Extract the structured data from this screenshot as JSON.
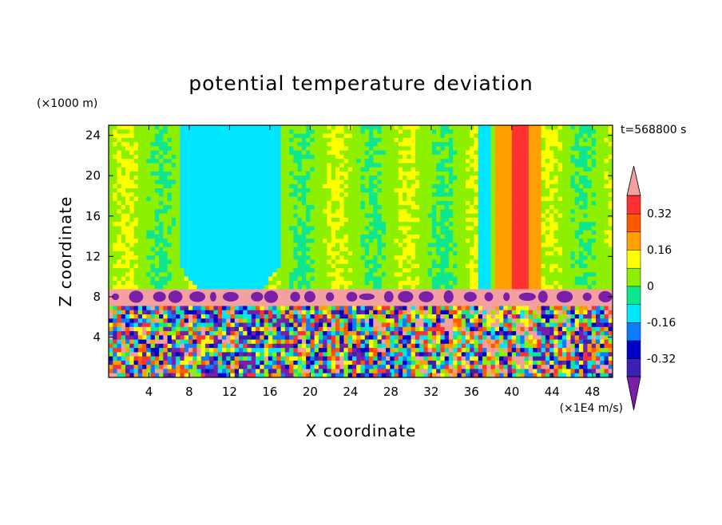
{
  "chart_data": {
    "type": "heatmap",
    "title": "potential temperature deviation",
    "xlabel": "X coordinate",
    "ylabel": "Z coordinate",
    "x_unit": "(×1E4 m/s)",
    "y_unit": "(×1000 m)",
    "time_label": "t=568800 s",
    "xlim": [
      0,
      50
    ],
    "ylim": [
      0,
      25
    ],
    "x_ticks": [
      4,
      8,
      12,
      16,
      20,
      24,
      28,
      32,
      36,
      40,
      44,
      48
    ],
    "y_ticks": [
      4,
      8,
      12,
      16,
      20,
      24
    ],
    "colorbar": {
      "labels": [
        "0.32",
        "0.16",
        "0",
        "-0.16",
        "-0.32"
      ],
      "label_levels": [
        0.32,
        0.16,
        0,
        -0.16,
        -0.32
      ],
      "levels": [
        -0.4,
        -0.32,
        -0.24,
        -0.16,
        -0.08,
        0,
        0.08,
        0.16,
        0.24,
        0.32,
        0.4
      ],
      "colors": [
        "#7a1fa8",
        "#3c20b4",
        "#0000c8",
        "#0a7dff",
        "#00e6ff",
        "#0ee690",
        "#8cf000",
        "#ffff00",
        "#ffa000",
        "#ff5a00",
        "#ff3232",
        "#f5a0a0"
      ],
      "extend": "both"
    },
    "regions": {
      "upper_background": 0.04,
      "inversion_layer_z": [
        7.2,
        8.6
      ],
      "inversion_layer_value": 0.45,
      "warm_column_x": [
        39.8,
        41.8
      ],
      "warm_column_value": 0.34,
      "cool_area_x": [
        7,
        17
      ],
      "cool_area_value": -0.1
    }
  }
}
